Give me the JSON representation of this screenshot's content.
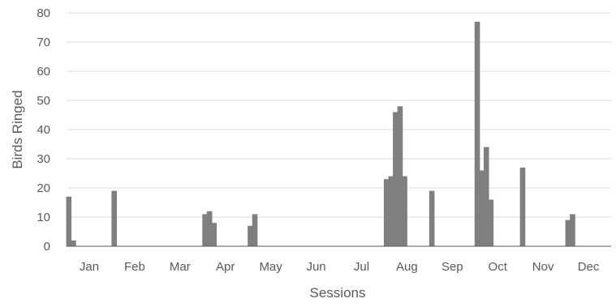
{
  "chart_data": {
    "type": "bar",
    "title": "",
    "xlabel": "Sessions",
    "ylabel": "Birds Ringed",
    "ylim": [
      0,
      80
    ],
    "yticks": [
      0,
      10,
      20,
      30,
      40,
      50,
      60,
      70,
      80
    ],
    "grid": true,
    "legend": "none",
    "bar_color": "#7f7f7f",
    "grid_color": "#d9d9d9",
    "axis_color": "#595959",
    "months": [
      {
        "label": "Jan",
        "values": [
          17,
          2,
          0,
          0,
          0,
          0,
          0,
          0,
          0,
          0
        ]
      },
      {
        "label": "Feb",
        "values": [
          19,
          0,
          0,
          0,
          0,
          0,
          0,
          0,
          0,
          0
        ]
      },
      {
        "label": "Mar",
        "values": [
          0,
          0,
          0,
          0,
          0,
          0,
          0,
          0,
          0,
          0
        ]
      },
      {
        "label": "Apr",
        "values": [
          11,
          12,
          8,
          0,
          0,
          0,
          0,
          0,
          0,
          0
        ]
      },
      {
        "label": "May",
        "values": [
          7,
          11,
          0,
          0,
          0,
          0,
          0,
          0,
          0,
          0
        ]
      },
      {
        "label": "Jun",
        "values": [
          0,
          0,
          0,
          0,
          0,
          0,
          0,
          0,
          0,
          0
        ]
      },
      {
        "label": "Jul",
        "values": [
          0,
          0,
          0,
          0,
          0,
          0,
          0,
          0,
          0,
          0
        ]
      },
      {
        "label": "Aug",
        "values": [
          23,
          24,
          46,
          48,
          24,
          0,
          0,
          0,
          0,
          0
        ]
      },
      {
        "label": "Sep",
        "values": [
          19,
          0,
          0,
          0,
          0,
          0,
          0,
          0,
          0,
          0
        ]
      },
      {
        "label": "Oct",
        "values": [
          77,
          26,
          34,
          16,
          0,
          0,
          0,
          0,
          0,
          0
        ]
      },
      {
        "label": "Nov",
        "values": [
          27,
          0,
          0,
          0,
          0,
          0,
          0,
          0,
          0,
          0
        ]
      },
      {
        "label": "Dec",
        "values": [
          9,
          11,
          0,
          0,
          0,
          0,
          0,
          0,
          0,
          0
        ]
      }
    ]
  }
}
